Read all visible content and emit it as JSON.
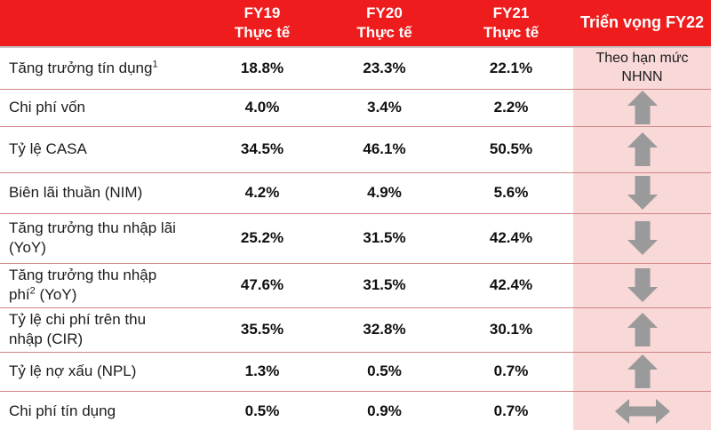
{
  "table": {
    "header": {
      "columns": [
        {
          "line1": "FY19",
          "line2": "Thực tế"
        },
        {
          "line1": "FY20",
          "line2": "Thực tế"
        },
        {
          "line1": "FY21",
          "line2": "Thực tế"
        }
      ],
      "outlook": "Triển vọng FY22"
    },
    "rows": [
      {
        "label": "Tăng trưởng tín dụng",
        "sup": "1",
        "suffix": "",
        "fy19": "18.8%",
        "fy20": "23.3%",
        "fy21": "22.1%",
        "outlook": {
          "type": "text",
          "value": "Theo hạn mức NHNN"
        }
      },
      {
        "label": "Chi phí vốn",
        "fy19": "4.0%",
        "fy20": "3.4%",
        "fy21": "2.2%",
        "outlook": {
          "type": "icon",
          "icon": "arrow-up-icon"
        }
      },
      {
        "label": "Tỷ lệ CASA",
        "fy19": "34.5%",
        "fy20": "46.1%",
        "fy21": "50.5%",
        "outlook": {
          "type": "icon",
          "icon": "arrow-up-icon"
        }
      },
      {
        "label": "Biên lãi thuần (NIM)",
        "fy19": "4.2%",
        "fy20": "4.9%",
        "fy21": "5.6%",
        "outlook": {
          "type": "icon",
          "icon": "arrow-down-icon"
        }
      },
      {
        "label": "Tăng trưởng thu nhập lãi (YoY)",
        "fy19": "25.2%",
        "fy20": "31.5%",
        "fy21": "42.4%",
        "outlook": {
          "type": "icon",
          "icon": "arrow-down-icon"
        }
      },
      {
        "label": "Tăng trưởng thu nhập phí",
        "sup": "2",
        "suffix": " (YoY)",
        "fy19": "47.6%",
        "fy20": "31.5%",
        "fy21": "42.4%",
        "outlook": {
          "type": "icon",
          "icon": "arrow-down-icon"
        }
      },
      {
        "label": "Tỷ lệ chi phí trên thu nhập (CIR)",
        "fy19": "35.5%",
        "fy20": "32.8%",
        "fy21": "30.1%",
        "outlook": {
          "type": "icon",
          "icon": "arrow-up-icon"
        }
      },
      {
        "label": "Tỷ lệ nợ xấu (NPL)",
        "fy19": "1.3%",
        "fy20": "0.5%",
        "fy21": "0.7%",
        "outlook": {
          "type": "icon",
          "icon": "arrow-up-icon"
        }
      },
      {
        "label": "Chi phí tín dụng",
        "fy19": "0.5%",
        "fy20": "0.9%",
        "fy21": "0.7%",
        "outlook": {
          "type": "icon",
          "icon": "arrow-left-right-icon"
        }
      }
    ],
    "colors": {
      "header_red": "#ee1c1c",
      "outlook_bg": "#f9d8d8",
      "arrow_gray": "#9a9a9a",
      "divider": "#d08484"
    }
  },
  "chart_data": {
    "type": "table",
    "title": "Triển vọng FY22",
    "columns": [
      "",
      "FY19 Thực tế",
      "FY20 Thực tế",
      "FY21 Thực tế",
      "Triển vọng FY22"
    ],
    "rows": [
      [
        "Tăng trưởng tín dụng¹",
        "18.8%",
        "23.3%",
        "22.1%",
        "Theo hạn mức NHNN"
      ],
      [
        "Chi phí vốn",
        "4.0%",
        "3.4%",
        "2.2%",
        "up"
      ],
      [
        "Tỷ lệ CASA",
        "34.5%",
        "46.1%",
        "50.5%",
        "up"
      ],
      [
        "Biên lãi thuần (NIM)",
        "4.2%",
        "4.9%",
        "5.6%",
        "down"
      ],
      [
        "Tăng trưởng thu nhập lãi (YoY)",
        "25.2%",
        "31.5%",
        "42.4%",
        "down"
      ],
      [
        "Tăng trưởng thu nhập phí² (YoY)",
        "47.6%",
        "31.5%",
        "42.4%",
        "down"
      ],
      [
        "Tỷ lệ chi phí trên thu nhập (CIR)",
        "35.5%",
        "32.8%",
        "30.1%",
        "up"
      ],
      [
        "Tỷ lệ nợ xấu (NPL)",
        "1.3%",
        "0.5%",
        "0.7%",
        "up"
      ],
      [
        "Chi phí tín dụng",
        "0.5%",
        "0.9%",
        "0.7%",
        "flat"
      ]
    ]
  }
}
